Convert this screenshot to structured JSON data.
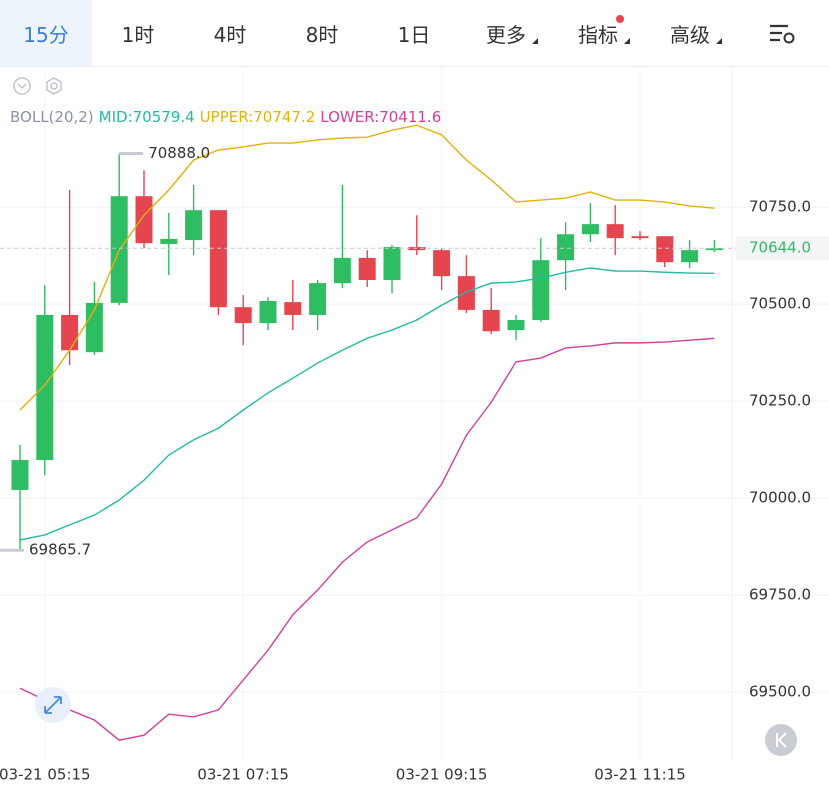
{
  "tabs": [
    "15分",
    "1时",
    "4时",
    "8时",
    "1日",
    "更多",
    "指标",
    "高级"
  ],
  "chart_data": {
    "type": "candlestick",
    "indicator": "BOLL(20,2)",
    "categories": [
      null,
      "03-21 05:15",
      null,
      null,
      null,
      null,
      null,
      null,
      null,
      "03-21 07:15",
      null,
      null,
      null,
      null,
      null,
      null,
      null,
      "03-21 09:15",
      null,
      null,
      null,
      null,
      null,
      null,
      null,
      "03-21 11:15",
      null,
      null,
      null
    ],
    "open": [
      70021,
      70098,
      70472,
      70376,
      70503,
      70778,
      70655,
      70665,
      70742,
      70492,
      70451,
      70505,
      70472,
      70554,
      70619,
      70562,
      70647,
      70639,
      70572,
      70485,
      70433,
      70459,
      70613,
      70680,
      70706,
      70675,
      70675,
      70608,
      70639
    ],
    "high": [
      70137,
      70549,
      70794,
      70557,
      70888,
      70845,
      70735,
      70807,
      70742,
      70523,
      70518,
      70562,
      70562,
      70807,
      70639,
      70652,
      70729,
      70644,
      70626,
      70541,
      70472,
      70670,
      70711,
      70760,
      70755,
      70688,
      70675,
      70665,
      70665
    ],
    "low": [
      69865.7,
      70059,
      70343,
      70369,
      70497,
      70644,
      70575,
      70626,
      70472,
      70394,
      70433,
      70433,
      70433,
      70541,
      70544,
      70528,
      70626,
      70536,
      70477,
      70423,
      70407,
      70454,
      70536,
      70660,
      70626,
      70665,
      70595,
      70593,
      70634
    ],
    "close": [
      70098,
      70472,
      70381,
      70503,
      70778,
      70657,
      70668,
      70742,
      70492,
      70451,
      70508,
      70472,
      70554,
      70619,
      70562,
      70647,
      70639,
      70572,
      70485,
      70430,
      70459,
      70613,
      70680,
      70706,
      70670,
      70670,
      70608,
      70639,
      70644
    ],
    "up_color": "#2ebd62",
    "down_color": "#e5454e",
    "series": [
      {
        "name": "UPPER:",
        "color": "#e2b10a",
        "values": [
          70227,
          70291,
          70381,
          70485,
          70639,
          70729,
          70794,
          70871,
          70897,
          70905,
          70915,
          70915,
          70923,
          70928,
          70930,
          70948,
          70961,
          70936,
          70871,
          70820,
          70763,
          70768,
          70773,
          70789,
          70768,
          70768,
          70763,
          70753,
          70747.2
        ]
      },
      {
        "name": "MID:",
        "color": "#22bba3",
        "values": [
          69892,
          69905,
          69931,
          69956,
          69995,
          70046,
          70111,
          70150,
          70180,
          70227,
          70271,
          70309,
          70348,
          70381,
          70412,
          70433,
          70459,
          70497,
          70531,
          70554,
          70557,
          70567,
          70582,
          70593,
          70585,
          70585,
          70582,
          70580,
          70579.4
        ]
      },
      {
        "name": "LOWER:",
        "color": "#d3409b",
        "values": [
          69510,
          69480,
          69454,
          69428,
          69376,
          69389,
          69443,
          69436,
          69454,
          69531,
          69608,
          69699,
          69763,
          69835,
          69887,
          69918,
          69949,
          70036,
          70162,
          70247,
          70351,
          70361,
          70387,
          70392,
          70400,
          70400,
          70402,
          70407,
          70411.6
        ]
      }
    ],
    "legend_order": [
      1,
      0,
      2
    ],
    "ylim": [
      69325,
      71111
    ],
    "yticks": [
      {
        "value": 69500,
        "label": "69500.0"
      },
      {
        "value": 69750,
        "label": "69750.0"
      },
      {
        "value": 70000,
        "label": "70000.0"
      },
      {
        "value": 70250,
        "label": "70250.0"
      },
      {
        "value": 70500,
        "label": "70500.0"
      },
      {
        "value": 70750,
        "label": "70750.0"
      }
    ],
    "grid": true,
    "high_marker": {
      "value": 70888,
      "label": "70888.0"
    },
    "low_marker": {
      "value": 69865.7,
      "label": "69865.7"
    },
    "last_price": {
      "value": 70644,
      "label": "70644.0"
    }
  }
}
